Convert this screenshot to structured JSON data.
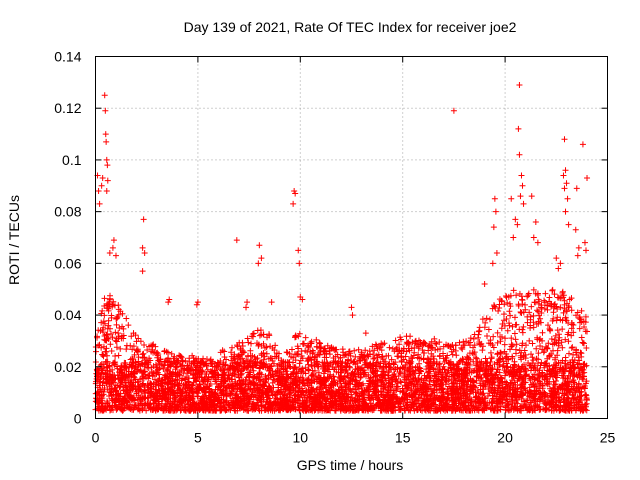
{
  "chart_data": {
    "type": "scatter",
    "title": "Day 139 of 2021, Rate Of TEC Index for receiver joe2",
    "xlabel": "GPS time / hours",
    "ylabel": "ROTI / TECUs",
    "xlim": [
      0,
      25
    ],
    "ylim": [
      0,
      0.14
    ],
    "xticks": [
      "0",
      "5",
      "10",
      "15",
      "20",
      "25"
    ],
    "yticks": [
      "0",
      "0.02",
      "0.04",
      "0.06",
      "0.08",
      "0.1",
      "0.12",
      "0.14"
    ],
    "grid": true,
    "marker": "+",
    "color": "#ff0000",
    "series": [
      {
        "envelope_hours": [
          0,
          0.5,
          1,
          1.5,
          2,
          2.5,
          3,
          3.5,
          4,
          4.5,
          5,
          5.5,
          6,
          6.5,
          7,
          7.5,
          8,
          8.5,
          9,
          9.5,
          10,
          10.5,
          11,
          11.5,
          12,
          12.5,
          13,
          13.5,
          14,
          14.5,
          15,
          15.5,
          16,
          16.5,
          17,
          17.5,
          18,
          18.5,
          19,
          19.5,
          20,
          20.5,
          21,
          21.5,
          22,
          22.5,
          23,
          23.5,
          24
        ],
        "envelope_roti": [
          0.03,
          0.05,
          0.045,
          0.04,
          0.032,
          0.03,
          0.028,
          0.026,
          0.025,
          0.024,
          0.025,
          0.024,
          0.026,
          0.027,
          0.03,
          0.032,
          0.035,
          0.033,
          0.025,
          0.03,
          0.034,
          0.032,
          0.03,
          0.028,
          0.027,
          0.027,
          0.027,
          0.028,
          0.03,
          0.03,
          0.032,
          0.032,
          0.033,
          0.031,
          0.029,
          0.029,
          0.03,
          0.034,
          0.04,
          0.045,
          0.048,
          0.05,
          0.05,
          0.05,
          0.05,
          0.05,
          0.05,
          0.045,
          0.04
        ],
        "outliers": [
          [
            0.1,
            0.094
          ],
          [
            0.15,
            0.088
          ],
          [
            0.2,
            0.083
          ],
          [
            0.3,
            0.09
          ],
          [
            0.35,
            0.093
          ],
          [
            0.45,
            0.125
          ],
          [
            0.48,
            0.119
          ],
          [
            0.5,
            0.11
          ],
          [
            0.52,
            0.107
          ],
          [
            0.55,
            0.1
          ],
          [
            0.58,
            0.098
          ],
          [
            0.6,
            0.092
          ],
          [
            0.55,
            0.088
          ],
          [
            0.9,
            0.069
          ],
          [
            0.85,
            0.066
          ],
          [
            1.0,
            0.063
          ],
          [
            0.7,
            0.064
          ],
          [
            2.35,
            0.077
          ],
          [
            2.3,
            0.066
          ],
          [
            2.4,
            0.064
          ],
          [
            2.3,
            0.057
          ],
          [
            3.6,
            0.046
          ],
          [
            3.55,
            0.045
          ],
          [
            5.0,
            0.045
          ],
          [
            4.95,
            0.044
          ],
          [
            6.9,
            0.069
          ],
          [
            7.4,
            0.045
          ],
          [
            7.35,
            0.043
          ],
          [
            8.0,
            0.067
          ],
          [
            8.1,
            0.062
          ],
          [
            7.95,
            0.06
          ],
          [
            8.6,
            0.045
          ],
          [
            9.7,
            0.088
          ],
          [
            9.75,
            0.087
          ],
          [
            9.65,
            0.083
          ],
          [
            9.9,
            0.065
          ],
          [
            9.95,
            0.06
          ],
          [
            10.0,
            0.047
          ],
          [
            10.1,
            0.046
          ],
          [
            12.5,
            0.043
          ],
          [
            12.55,
            0.04
          ],
          [
            13.2,
            0.033
          ],
          [
            17.5,
            0.119
          ],
          [
            19.0,
            0.052
          ],
          [
            19.5,
            0.085
          ],
          [
            19.55,
            0.08
          ],
          [
            19.45,
            0.074
          ],
          [
            19.6,
            0.064
          ],
          [
            19.4,
            0.06
          ],
          [
            20.3,
            0.085
          ],
          [
            20.5,
            0.077
          ],
          [
            20.6,
            0.075
          ],
          [
            20.4,
            0.07
          ],
          [
            20.7,
            0.129
          ],
          [
            20.65,
            0.112
          ],
          [
            20.7,
            0.102
          ],
          [
            20.8,
            0.094
          ],
          [
            20.85,
            0.09
          ],
          [
            20.75,
            0.086
          ],
          [
            20.9,
            0.083
          ],
          [
            21.3,
            0.086
          ],
          [
            21.5,
            0.076
          ],
          [
            21.4,
            0.07
          ],
          [
            21.6,
            0.068
          ],
          [
            22.5,
            0.062
          ],
          [
            22.6,
            0.058
          ],
          [
            22.7,
            0.06
          ],
          [
            22.9,
            0.108
          ],
          [
            22.95,
            0.096
          ],
          [
            22.85,
            0.094
          ],
          [
            23.0,
            0.091
          ],
          [
            22.9,
            0.089
          ],
          [
            23.05,
            0.085
          ],
          [
            22.95,
            0.08
          ],
          [
            23.1,
            0.075
          ],
          [
            23.5,
            0.089
          ],
          [
            23.45,
            0.073
          ],
          [
            23.6,
            0.066
          ],
          [
            23.55,
            0.063
          ],
          [
            23.8,
            0.106
          ],
          [
            24.0,
            0.093
          ],
          [
            23.9,
            0.068
          ],
          [
            23.95,
            0.065
          ]
        ]
      }
    ]
  }
}
